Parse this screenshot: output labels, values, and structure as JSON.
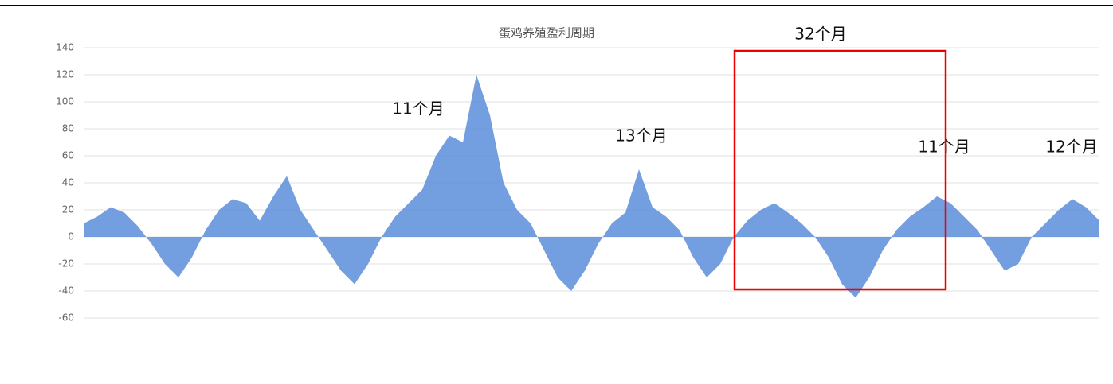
{
  "chart_data": {
    "type": "area",
    "title": "蛋鸡养殖盈利周期",
    "values": [
      10,
      15,
      22,
      18,
      8,
      -5,
      -20,
      -30,
      -15,
      5,
      20,
      28,
      25,
      12,
      30,
      45,
      20,
      5,
      -10,
      -25,
      -35,
      -20,
      0,
      15,
      25,
      35,
      60,
      75,
      70,
      120,
      90,
      40,
      20,
      10,
      -10,
      -30,
      -40,
      -25,
      -5,
      10,
      18,
      50,
      22,
      15,
      5,
      -15,
      -30,
      -20,
      0,
      12,
      20,
      25,
      18,
      10,
      0,
      -15,
      -35,
      -45,
      -30,
      -10,
      5,
      15,
      22,
      30,
      25,
      15,
      5,
      -10,
      -25,
      -20,
      0,
      10,
      20,
      28,
      22,
      12
    ],
    "color": "#5b8ddb",
    "ylim": [
      -60,
      140
    ],
    "yticks": [
      140,
      120,
      100,
      80,
      60,
      40,
      20,
      0,
      -20,
      -40,
      -60
    ],
    "grid": true,
    "annotations": [
      "32个月",
      "11个月",
      "13个月",
      "11个月",
      "12个月"
    ]
  }
}
